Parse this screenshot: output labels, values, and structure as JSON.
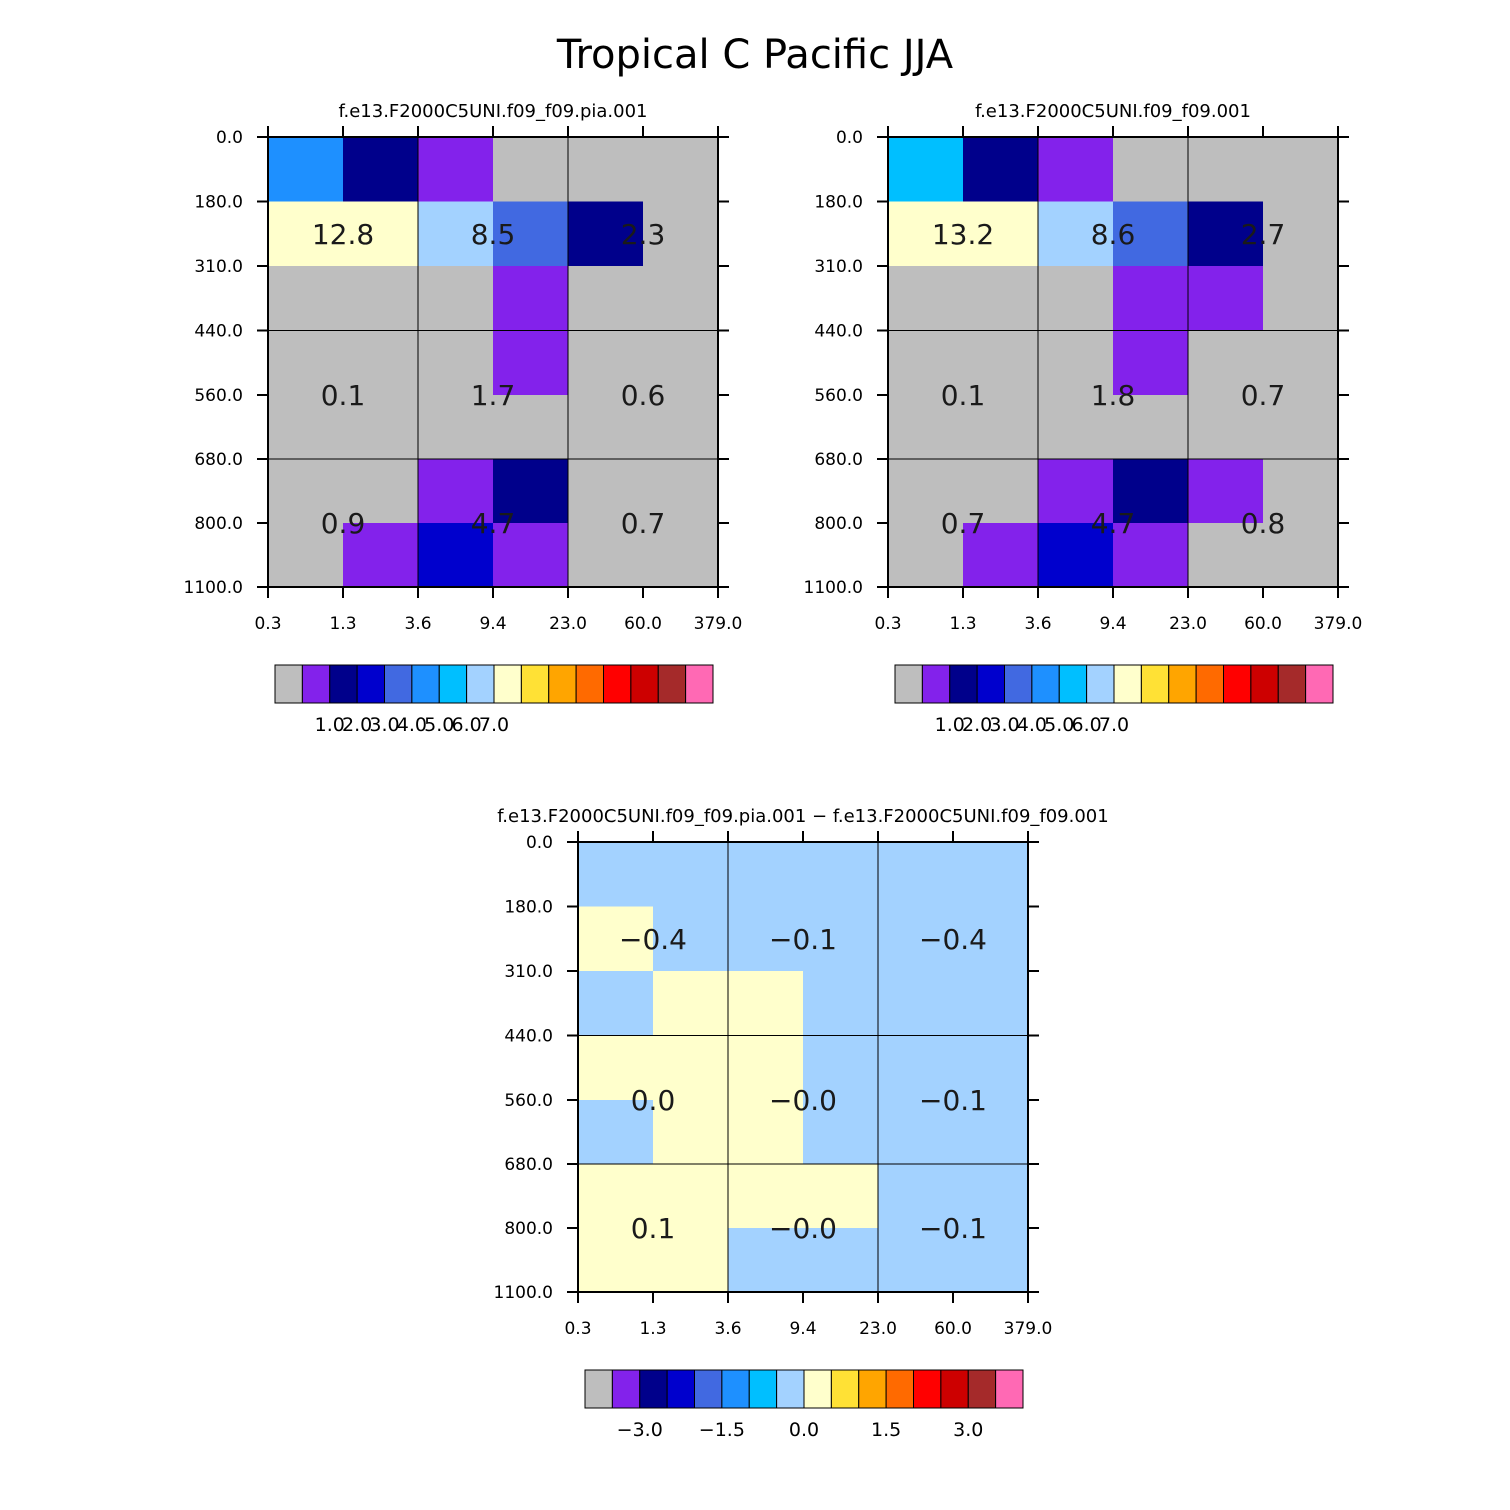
{
  "figure_title": "Tropical C Pacific JJA",
  "chart_data": [
    {
      "type": "heatmap",
      "title": "f.e13.F2000C5UNI.f09_f09.pia.001",
      "x_ticks": [
        "0.3",
        "1.3",
        "3.6",
        "9.4",
        "23.0",
        "60.0",
        "379.0"
      ],
      "y_ticks": [
        "0.0",
        "180.0",
        "310.0",
        "440.0",
        "560.0",
        "680.0",
        "800.0",
        "1100.0"
      ],
      "cell_colors": [
        [
          "#1e90ff",
          "#00008b",
          "#8322eb",
          "#bebebe",
          "#bebebe",
          "#bebebe"
        ],
        [
          "#ffffcc",
          "#ffffcc",
          "#a3d2ff",
          "#4169e1",
          "#00008b",
          "#bebebe"
        ],
        [
          "#bebebe",
          "#bebebe",
          "#bebebe",
          "#8322eb",
          "#bebebe",
          "#bebebe"
        ],
        [
          "#bebebe",
          "#bebebe",
          "#bebebe",
          "#8322eb",
          "#bebebe",
          "#bebebe"
        ],
        [
          "#bebebe",
          "#bebebe",
          "#bebebe",
          "#bebebe",
          "#bebebe",
          "#bebebe"
        ],
        [
          "#bebebe",
          "#bebebe",
          "#8322eb",
          "#00008b",
          "#bebebe",
          "#bebebe"
        ],
        [
          "#bebebe",
          "#8322eb",
          "#0000cd",
          "#8322eb",
          "#bebebe",
          "#bebebe"
        ]
      ],
      "box_values": [
        [
          "",
          "12.8",
          "8.5",
          "2.3"
        ],
        [
          "",
          "0.1",
          "1.7",
          "0.6"
        ],
        [
          "",
          "0.9",
          "4.7",
          "0.7"
        ]
      ],
      "colorbar": {
        "colors": [
          "#bebebe",
          "#8322eb",
          "#00008b",
          "#0000cd",
          "#4169e1",
          "#1e90ff",
          "#00bfff",
          "#a3d2ff",
          "#ffffcc",
          "#ffe135",
          "#ffa500",
          "#ff6a00",
          "#ff0000",
          "#cd0000",
          "#a52a2a",
          "#ff69b4"
        ],
        "labels": [
          "1.0",
          "2.0",
          "3.0",
          "4.0",
          "5.0",
          "6.0",
          "7.0"
        ]
      }
    },
    {
      "type": "heatmap",
      "title": "f.e13.F2000C5UNI.f09_f09.001",
      "x_ticks": [
        "0.3",
        "1.3",
        "3.6",
        "9.4",
        "23.0",
        "60.0",
        "379.0"
      ],
      "y_ticks": [
        "0.0",
        "180.0",
        "310.0",
        "440.0",
        "560.0",
        "680.0",
        "800.0",
        "1100.0"
      ],
      "cell_colors": [
        [
          "#00bfff",
          "#00008b",
          "#8322eb",
          "#bebebe",
          "#bebebe",
          "#bebebe"
        ],
        [
          "#ffffcc",
          "#ffffcc",
          "#a3d2ff",
          "#4169e1",
          "#00008b",
          "#bebebe"
        ],
        [
          "#bebebe",
          "#bebebe",
          "#bebebe",
          "#8322eb",
          "#8322eb",
          "#bebebe"
        ],
        [
          "#bebebe",
          "#bebebe",
          "#bebebe",
          "#8322eb",
          "#bebebe",
          "#bebebe"
        ],
        [
          "#bebebe",
          "#bebebe",
          "#bebebe",
          "#bebebe",
          "#bebebe",
          "#bebebe"
        ],
        [
          "#bebebe",
          "#bebebe",
          "#8322eb",
          "#00008b",
          "#8322eb",
          "#bebebe"
        ],
        [
          "#bebebe",
          "#8322eb",
          "#0000cd",
          "#8322eb",
          "#bebebe",
          "#bebebe"
        ]
      ],
      "box_values": [
        [
          "",
          "13.2",
          "8.6",
          "2.7"
        ],
        [
          "",
          "0.1",
          "1.8",
          "0.7"
        ],
        [
          "",
          "0.7",
          "4.7",
          "0.8"
        ]
      ],
      "colorbar": {
        "colors": [
          "#bebebe",
          "#8322eb",
          "#00008b",
          "#0000cd",
          "#4169e1",
          "#1e90ff",
          "#00bfff",
          "#a3d2ff",
          "#ffffcc",
          "#ffe135",
          "#ffa500",
          "#ff6a00",
          "#ff0000",
          "#cd0000",
          "#a52a2a",
          "#ff69b4"
        ],
        "labels": [
          "1.0",
          "2.0",
          "3.0",
          "4.0",
          "5.0",
          "6.0",
          "7.0"
        ]
      }
    },
    {
      "type": "heatmap",
      "title": "f.e13.F2000C5UNI.f09_f09.pia.001 − f.e13.F2000C5UNI.f09_f09.001",
      "x_ticks": [
        "0.3",
        "1.3",
        "3.6",
        "9.4",
        "23.0",
        "60.0",
        "379.0"
      ],
      "y_ticks": [
        "0.0",
        "180.0",
        "310.0",
        "440.0",
        "560.0",
        "680.0",
        "800.0",
        "1100.0"
      ],
      "cell_colors": [
        [
          "#a3d2ff",
          "#a3d2ff",
          "#a3d2ff",
          "#a3d2ff",
          "#a3d2ff",
          "#a3d2ff"
        ],
        [
          "#ffffcc",
          "#a3d2ff",
          "#a3d2ff",
          "#a3d2ff",
          "#a3d2ff",
          "#a3d2ff"
        ],
        [
          "#a3d2ff",
          "#ffffcc",
          "#ffffcc",
          "#a3d2ff",
          "#a3d2ff",
          "#a3d2ff"
        ],
        [
          "#ffffcc",
          "#ffffcc",
          "#ffffcc",
          "#a3d2ff",
          "#a3d2ff",
          "#a3d2ff"
        ],
        [
          "#a3d2ff",
          "#ffffcc",
          "#ffffcc",
          "#a3d2ff",
          "#a3d2ff",
          "#a3d2ff"
        ],
        [
          "#ffffcc",
          "#ffffcc",
          "#ffffcc",
          "#ffffcc",
          "#a3d2ff",
          "#a3d2ff"
        ],
        [
          "#ffffcc",
          "#ffffcc",
          "#a3d2ff",
          "#a3d2ff",
          "#a3d2ff",
          "#a3d2ff"
        ]
      ],
      "box_values": [
        [
          "",
          "−0.4",
          "−0.1",
          "−0.4"
        ],
        [
          "",
          "0.0",
          "−0.0",
          "−0.1"
        ],
        [
          "",
          "0.1",
          "−0.0",
          "−0.1"
        ]
      ],
      "colorbar": {
        "colors": [
          "#bebebe",
          "#8322eb",
          "#00008b",
          "#0000cd",
          "#4169e1",
          "#1e90ff",
          "#00bfff",
          "#a3d2ff",
          "#ffffcc",
          "#ffe135",
          "#ffa500",
          "#ff6a00",
          "#ff0000",
          "#cd0000",
          "#a52a2a",
          "#ff69b4"
        ],
        "labels": [
          "−3.0",
          "−1.5",
          "0.0",
          "1.5",
          "3.0"
        ]
      }
    }
  ]
}
